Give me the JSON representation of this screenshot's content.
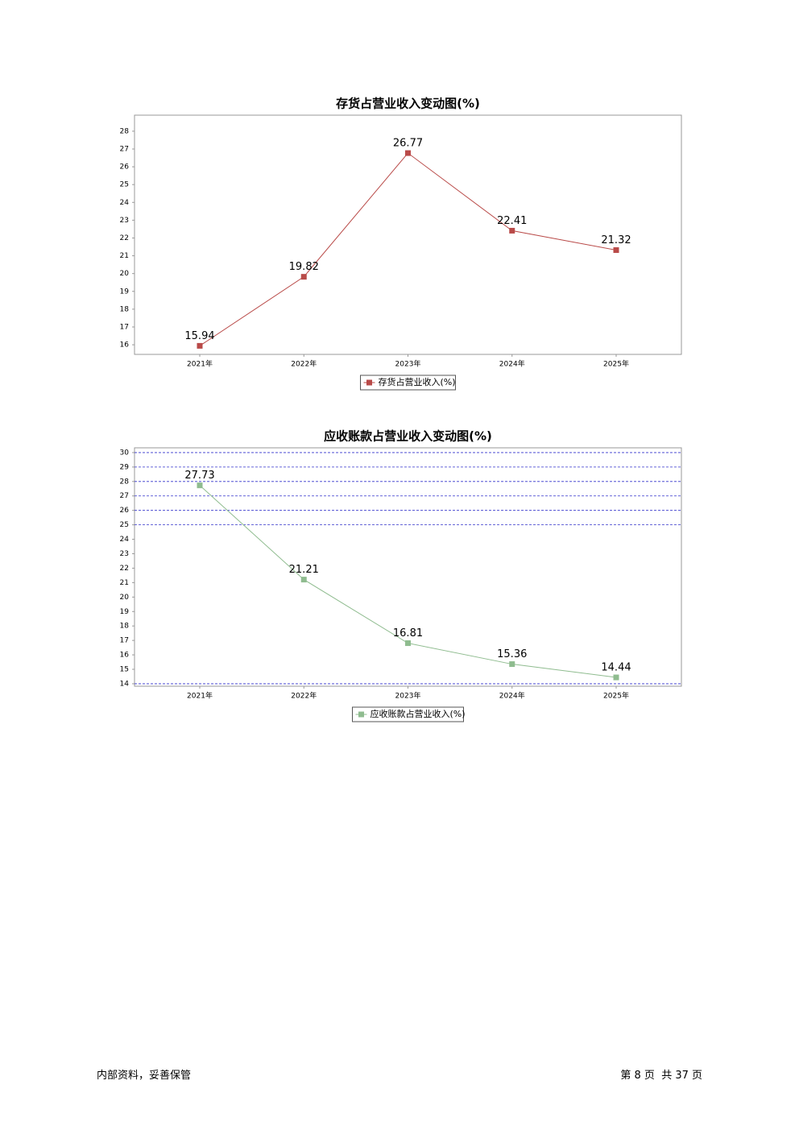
{
  "chart_data": [
    {
      "type": "line",
      "title": "存货占营业收入变动图(%)",
      "categories": [
        "2021年",
        "2022年",
        "2023年",
        "2024年",
        "2025年"
      ],
      "series": [
        {
          "name": "存货占营业收入(%)",
          "color": "#b94a48",
          "values": [
            15.94,
            19.82,
            26.77,
            22.41,
            21.32
          ]
        }
      ],
      "ylim": [
        15.46,
        28.9
      ],
      "yticks": [
        16,
        17,
        18,
        19,
        20,
        21,
        22,
        23,
        24,
        25,
        26,
        27,
        28
      ],
      "grid": false
    },
    {
      "type": "line",
      "title": "应收账款占营业收入变动图(%)",
      "categories": [
        "2021年",
        "2022年",
        "2023年",
        "2024年",
        "2025年"
      ],
      "series": [
        {
          "name": "应收账款占营业收入(%)",
          "color": "#8fbc8f",
          "values": [
            27.73,
            21.21,
            16.81,
            15.36,
            14.44
          ]
        }
      ],
      "ylim": [
        13.83,
        30.33
      ],
      "yticks": [
        14,
        15,
        16,
        17,
        18,
        19,
        20,
        21,
        22,
        23,
        24,
        25,
        26,
        27,
        28,
        29,
        30
      ],
      "grid": true,
      "grid_color": "#3333cc",
      "gridlines": [
        30,
        29,
        28,
        27,
        26,
        25,
        14
      ]
    }
  ],
  "footer": {
    "left": "内部资料，妥善保管",
    "right": "第 8 页  共 37 页"
  }
}
